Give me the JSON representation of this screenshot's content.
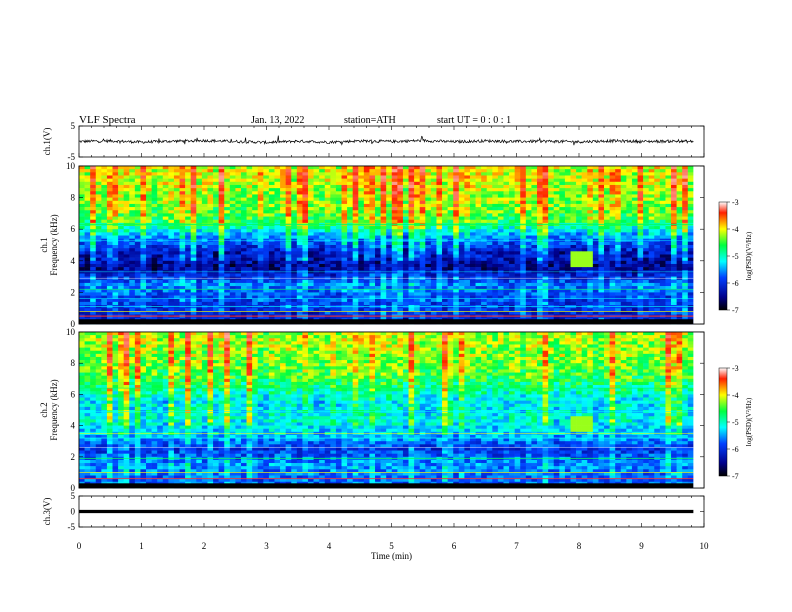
{
  "header": {
    "title": "VLF  Spectra",
    "date": "Jan. 13, 2022",
    "station": "station=ATH",
    "start_ut": "start  UT  =   0 : 0  : 1"
  },
  "colors": {
    "spectrum_low": "#00008b",
    "spectrum_mid": "#00ffff",
    "spectrum_high": "#ffff00",
    "spectrum_top": "#ff0000"
  },
  "chart_data": [
    {
      "type": "line",
      "name": "ch1-waveform",
      "ylabel": "ch.1(V)",
      "ylim": [
        -5,
        5
      ],
      "yticks": [
        "5",
        "-5"
      ],
      "xlim": [
        0,
        10
      ],
      "x": [
        0,
        0.5,
        1,
        1.5,
        2,
        2.5,
        3,
        3.5,
        4,
        4.5,
        5,
        5.5,
        6,
        6.5,
        7,
        7.5,
        8,
        8.5,
        9,
        9.5,
        9.83
      ],
      "y": [
        0,
        0.2,
        -0.2,
        0.1,
        0.3,
        0,
        -0.3,
        0.1,
        -0.2,
        0.2,
        0,
        0.3,
        -0.1,
        0.2,
        0,
        0.1,
        -0.1,
        0.2,
        0,
        0.1,
        0
      ]
    },
    {
      "type": "heatmap",
      "name": "ch1-spectrogram",
      "ylabel": "ch.1\nFrequency  (kHz)",
      "ylim": [
        0,
        10
      ],
      "yticks": [
        "0",
        "2",
        "4",
        "6",
        "8",
        "10"
      ],
      "xlim": [
        0,
        10
      ],
      "colorbar": {
        "label": "log(PSD)(V²/Hz)",
        "range": [
          -7,
          -3
        ],
        "ticks": [
          "-3",
          "-4",
          "-5",
          "-6",
          "-7"
        ]
      },
      "frequency_khz": [
        0.5,
        1.5,
        2.5,
        3.5,
        4.5,
        5.5,
        6.5,
        7.5,
        8.5,
        9.5
      ],
      "log_psd": [
        -6.3,
        -6.1,
        -5.9,
        -6.6,
        -6.5,
        -5.9,
        -5.0,
        -4.8,
        -4.7,
        -4.6
      ]
    },
    {
      "type": "heatmap",
      "name": "ch2-spectrogram",
      "ylabel": "ch.2\nFrequency  (kHz)",
      "ylim": [
        0,
        10
      ],
      "yticks": [
        "0",
        "2",
        "4",
        "6",
        "8",
        "10"
      ],
      "xlim": [
        0,
        10
      ],
      "colorbar": {
        "label": "log(PSD)(V²/Hz)",
        "range": [
          -7,
          -3
        ],
        "ticks": [
          "-3",
          "-4",
          "-5",
          "-6",
          "-7"
        ]
      },
      "frequency_khz": [
        0.5,
        1.5,
        2.5,
        3.5,
        4.5,
        5.5,
        6.5,
        7.5,
        8.5,
        9.5
      ],
      "log_psd": [
        -6.0,
        -5.8,
        -6.2,
        -5.6,
        -5.5,
        -5.6,
        -5.2,
        -4.9,
        -4.8,
        -4.7
      ]
    },
    {
      "type": "line",
      "name": "ch3-waveform",
      "ylabel": "ch.3(V)",
      "ylim": [
        -5,
        5
      ],
      "yticks": [
        "5",
        "0",
        "-5"
      ],
      "xlim": [
        0,
        10
      ],
      "x": [
        0,
        9.83
      ],
      "y": [
        0,
        0
      ]
    }
  ],
  "xaxis": {
    "label": "Time  (min)",
    "ticks": [
      "0",
      "1",
      "2",
      "3",
      "4",
      "5",
      "6",
      "7",
      "8",
      "9",
      "10"
    ]
  }
}
